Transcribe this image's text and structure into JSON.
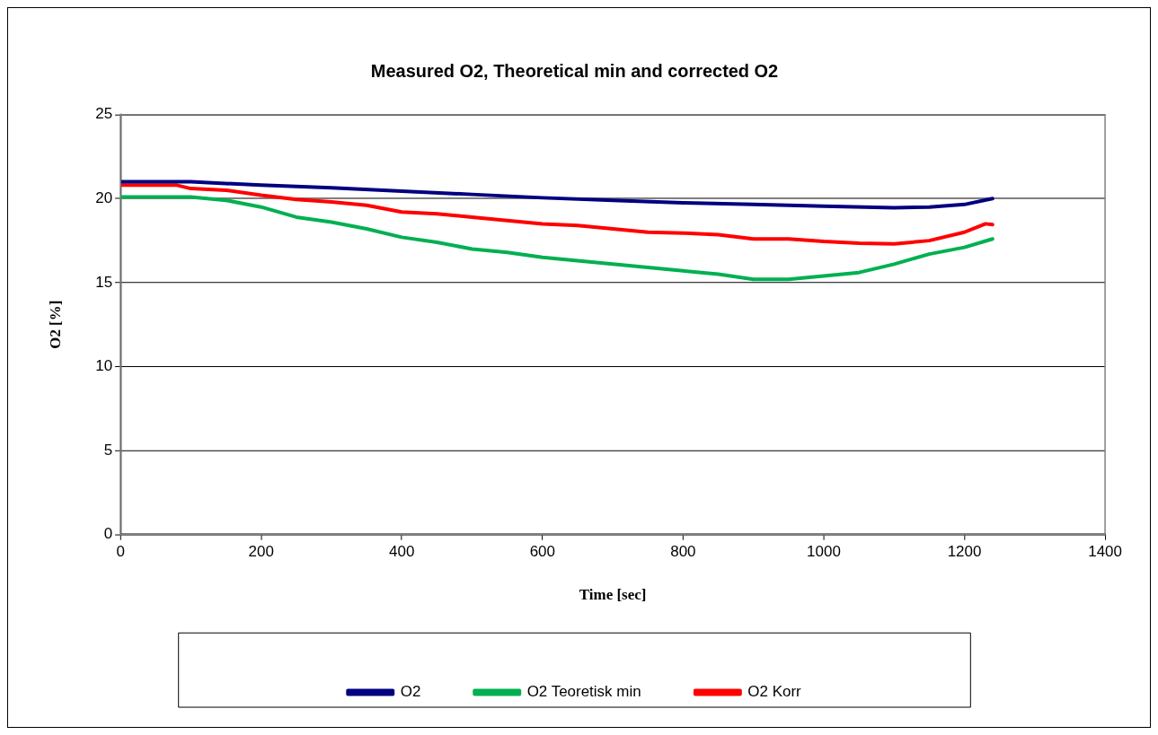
{
  "chart_data": {
    "type": "line",
    "title": "Measured O2, Theoretical min and corrected O2",
    "xlabel": "Time [sec]",
    "ylabel": "O2 [%]",
    "xlim": [
      0,
      1400
    ],
    "xticks": [
      0,
      200,
      400,
      600,
      800,
      1000,
      1200,
      1400
    ],
    "ylim": [
      0,
      25
    ],
    "yticks": [
      0,
      5,
      10,
      15,
      20,
      25
    ],
    "grid": "y",
    "legend": "bottom",
    "marker": "none",
    "line_style": "solid",
    "series": [
      {
        "name": "O2",
        "color": "#000080",
        "x": [
          0,
          100,
          200,
          300,
          400,
          500,
          600,
          700,
          800,
          900,
          1000,
          1100,
          1150,
          1200,
          1240
        ],
        "values": [
          21.0,
          21.0,
          20.8,
          20.65,
          20.45,
          20.25,
          20.05,
          19.9,
          19.75,
          19.65,
          19.55,
          19.45,
          19.5,
          19.65,
          20.0
        ]
      },
      {
        "name": "O2 Teoretisk min",
        "color": "#00b050",
        "x": [
          0,
          100,
          150,
          200,
          250,
          300,
          350,
          400,
          450,
          500,
          550,
          600,
          650,
          700,
          750,
          800,
          850,
          900,
          950,
          1000,
          1050,
          1100,
          1150,
          1200,
          1240
        ],
        "values": [
          20.1,
          20.1,
          19.9,
          19.5,
          18.9,
          18.6,
          18.2,
          17.7,
          17.4,
          17.0,
          16.8,
          16.5,
          16.3,
          16.1,
          15.9,
          15.7,
          15.5,
          15.2,
          15.2,
          15.4,
          15.6,
          16.1,
          16.7,
          17.1,
          17.6
        ]
      },
      {
        "name": "O2 Korr",
        "color": "#ff0000",
        "x": [
          0,
          80,
          100,
          150,
          200,
          250,
          300,
          350,
          400,
          450,
          500,
          550,
          600,
          650,
          700,
          750,
          800,
          850,
          900,
          950,
          1000,
          1050,
          1100,
          1150,
          1200,
          1230,
          1240
        ],
        "values": [
          20.8,
          20.8,
          20.6,
          20.5,
          20.2,
          19.95,
          19.8,
          19.6,
          19.2,
          19.1,
          18.9,
          18.7,
          18.5,
          18.4,
          18.2,
          18.0,
          17.95,
          17.85,
          17.6,
          17.6,
          17.45,
          17.35,
          17.3,
          17.5,
          18.0,
          18.5,
          18.45
        ]
      }
    ]
  }
}
